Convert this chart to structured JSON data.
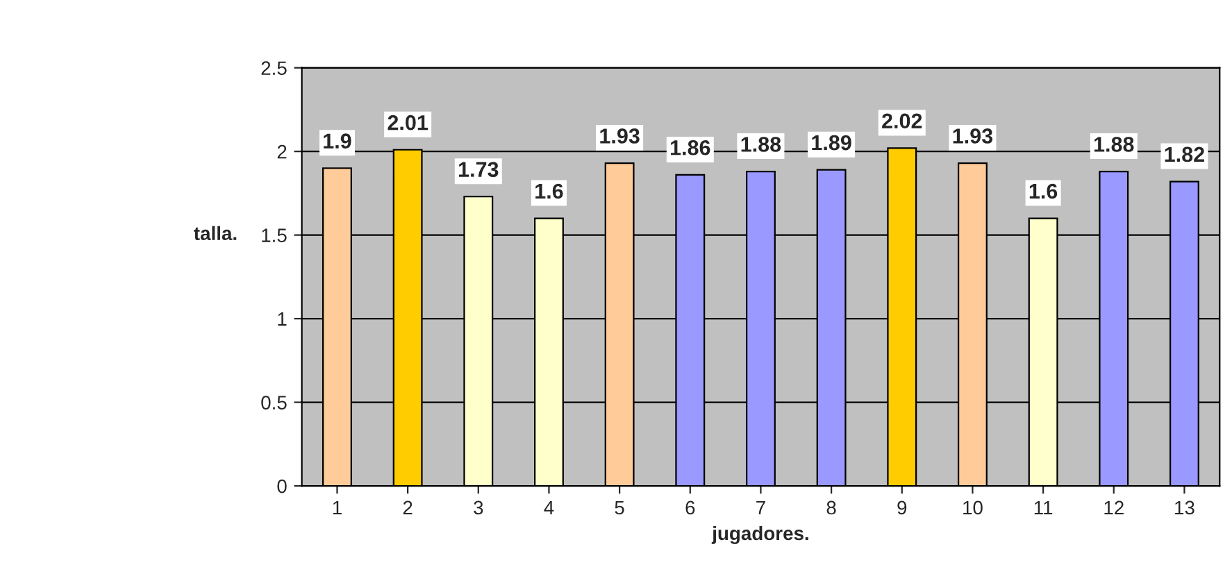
{
  "chart_data": {
    "type": "bar",
    "xlabel": "jugadores.",
    "ylabel": "talla.",
    "categories": [
      "1",
      "2",
      "3",
      "4",
      "5",
      "6",
      "7",
      "8",
      "9",
      "10",
      "11",
      "12",
      "13"
    ],
    "values": [
      1.9,
      2.01,
      1.73,
      1.6,
      1.93,
      1.86,
      1.88,
      1.89,
      2.02,
      1.93,
      1.6,
      1.88,
      1.82
    ],
    "colors": [
      "#ffcc99",
      "#ffcc00",
      "#ffffcc",
      "#ffffcc",
      "#ffcc99",
      "#9999ff",
      "#9999ff",
      "#9999ff",
      "#ffcc00",
      "#ffcc99",
      "#ffffcc",
      "#9999ff",
      "#9999ff"
    ],
    "ylim": [
      0,
      2.5
    ],
    "yticks": [
      0,
      0.5,
      1,
      1.5,
      2,
      2.5
    ],
    "grid": "y",
    "data_labels": true,
    "legend": false
  }
}
